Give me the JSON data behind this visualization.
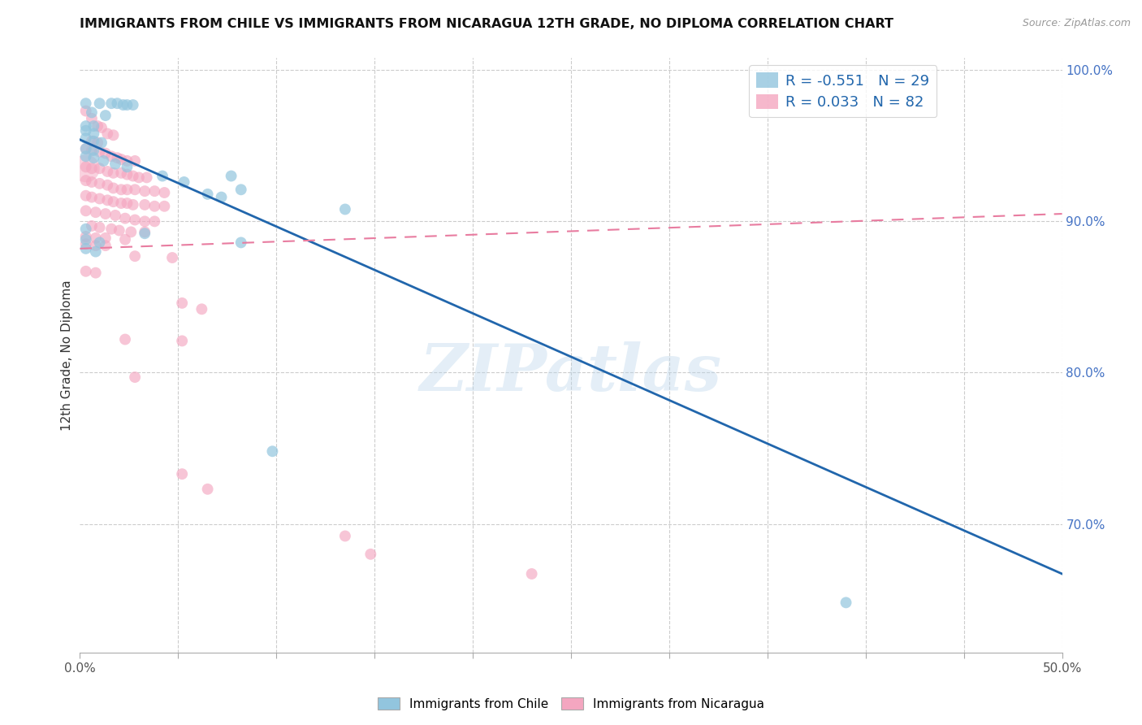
{
  "title": "IMMIGRANTS FROM CHILE VS IMMIGRANTS FROM NICARAGUA 12TH GRADE, NO DIPLOMA CORRELATION CHART",
  "source": "Source: ZipAtlas.com",
  "ylabel": "12th Grade, No Diploma",
  "xlim": [
    0.0,
    0.5
  ],
  "ylim": [
    0.615,
    1.008
  ],
  "xticks": [
    0.0,
    0.05,
    0.1,
    0.15,
    0.2,
    0.25,
    0.3,
    0.35,
    0.4,
    0.45,
    0.5
  ],
  "xtick_labels_show": [
    0.0,
    0.5
  ],
  "yticks_right": [
    1.0,
    0.9,
    0.8,
    0.7
  ],
  "color_chile": "#92c5de",
  "color_nicaragua": "#f4a6c0",
  "trendline_chile_color": "#2166ac",
  "trendline_nicaragua_color": "#e87ca0",
  "background_color": "#ffffff",
  "watermark": "ZIPatlas",
  "legend_chile_r": "-0.551",
  "legend_chile_n": "29",
  "legend_nicaragua_r": "0.033",
  "legend_nicaragua_n": "82",
  "chile_scatter": [
    [
      0.003,
      0.978
    ],
    [
      0.01,
      0.978
    ],
    [
      0.016,
      0.978
    ],
    [
      0.019,
      0.978
    ],
    [
      0.022,
      0.977
    ],
    [
      0.024,
      0.977
    ],
    [
      0.027,
      0.977
    ],
    [
      0.006,
      0.972
    ],
    [
      0.013,
      0.97
    ],
    [
      0.003,
      0.963
    ],
    [
      0.007,
      0.963
    ],
    [
      0.003,
      0.96
    ],
    [
      0.007,
      0.958
    ],
    [
      0.003,
      0.955
    ],
    [
      0.007,
      0.953
    ],
    [
      0.011,
      0.952
    ],
    [
      0.003,
      0.948
    ],
    [
      0.007,
      0.947
    ],
    [
      0.003,
      0.943
    ],
    [
      0.007,
      0.942
    ],
    [
      0.012,
      0.94
    ],
    [
      0.018,
      0.938
    ],
    [
      0.024,
      0.936
    ],
    [
      0.042,
      0.93
    ],
    [
      0.077,
      0.93
    ],
    [
      0.053,
      0.926
    ],
    [
      0.082,
      0.921
    ],
    [
      0.065,
      0.918
    ],
    [
      0.072,
      0.916
    ],
    [
      0.135,
      0.908
    ],
    [
      0.003,
      0.895
    ],
    [
      0.033,
      0.892
    ],
    [
      0.003,
      0.888
    ],
    [
      0.01,
      0.886
    ],
    [
      0.082,
      0.886
    ],
    [
      0.003,
      0.882
    ],
    [
      0.008,
      0.88
    ],
    [
      0.098,
      0.748
    ],
    [
      0.39,
      0.648
    ]
  ],
  "nicaragua_scatter": [
    [
      0.003,
      0.973
    ],
    [
      0.006,
      0.968
    ],
    [
      0.009,
      0.963
    ],
    [
      0.011,
      0.962
    ],
    [
      0.014,
      0.958
    ],
    [
      0.017,
      0.957
    ],
    [
      0.006,
      0.953
    ],
    [
      0.009,
      0.952
    ],
    [
      0.003,
      0.948
    ],
    [
      0.006,
      0.947
    ],
    [
      0.01,
      0.946
    ],
    [
      0.013,
      0.945
    ],
    [
      0.016,
      0.943
    ],
    [
      0.019,
      0.942
    ],
    [
      0.021,
      0.941
    ],
    [
      0.024,
      0.94
    ],
    [
      0.028,
      0.94
    ],
    [
      0.003,
      0.936
    ],
    [
      0.006,
      0.935
    ],
    [
      0.01,
      0.935
    ],
    [
      0.014,
      0.933
    ],
    [
      0.017,
      0.932
    ],
    [
      0.021,
      0.932
    ],
    [
      0.024,
      0.931
    ],
    [
      0.027,
      0.93
    ],
    [
      0.03,
      0.929
    ],
    [
      0.034,
      0.929
    ],
    [
      0.003,
      0.927
    ],
    [
      0.006,
      0.926
    ],
    [
      0.01,
      0.925
    ],
    [
      0.014,
      0.924
    ],
    [
      0.017,
      0.922
    ],
    [
      0.021,
      0.921
    ],
    [
      0.024,
      0.921
    ],
    [
      0.028,
      0.921
    ],
    [
      0.033,
      0.92
    ],
    [
      0.038,
      0.92
    ],
    [
      0.043,
      0.919
    ],
    [
      0.003,
      0.917
    ],
    [
      0.006,
      0.916
    ],
    [
      0.01,
      0.915
    ],
    [
      0.014,
      0.914
    ],
    [
      0.017,
      0.913
    ],
    [
      0.021,
      0.912
    ],
    [
      0.024,
      0.912
    ],
    [
      0.027,
      0.911
    ],
    [
      0.033,
      0.911
    ],
    [
      0.038,
      0.91
    ],
    [
      0.043,
      0.91
    ],
    [
      0.003,
      0.907
    ],
    [
      0.008,
      0.906
    ],
    [
      0.013,
      0.905
    ],
    [
      0.018,
      0.904
    ],
    [
      0.023,
      0.902
    ],
    [
      0.028,
      0.901
    ],
    [
      0.033,
      0.9
    ],
    [
      0.038,
      0.9
    ],
    [
      0.006,
      0.897
    ],
    [
      0.01,
      0.896
    ],
    [
      0.016,
      0.895
    ],
    [
      0.02,
      0.894
    ],
    [
      0.026,
      0.893
    ],
    [
      0.033,
      0.893
    ],
    [
      0.003,
      0.89
    ],
    [
      0.008,
      0.889
    ],
    [
      0.013,
      0.889
    ],
    [
      0.023,
      0.888
    ],
    [
      0.003,
      0.885
    ],
    [
      0.008,
      0.884
    ],
    [
      0.013,
      0.884
    ],
    [
      0.028,
      0.877
    ],
    [
      0.047,
      0.876
    ],
    [
      0.003,
      0.867
    ],
    [
      0.008,
      0.866
    ],
    [
      0.052,
      0.846
    ],
    [
      0.062,
      0.842
    ],
    [
      0.023,
      0.822
    ],
    [
      0.052,
      0.821
    ],
    [
      0.028,
      0.797
    ],
    [
      0.052,
      0.733
    ],
    [
      0.065,
      0.723
    ],
    [
      0.135,
      0.692
    ],
    [
      0.148,
      0.68
    ],
    [
      0.23,
      0.667
    ]
  ],
  "chile_trendline": [
    [
      0.0,
      0.954
    ],
    [
      0.5,
      0.667
    ]
  ],
  "nicaragua_trendline": [
    [
      0.0,
      0.882
    ],
    [
      0.5,
      0.905
    ]
  ]
}
